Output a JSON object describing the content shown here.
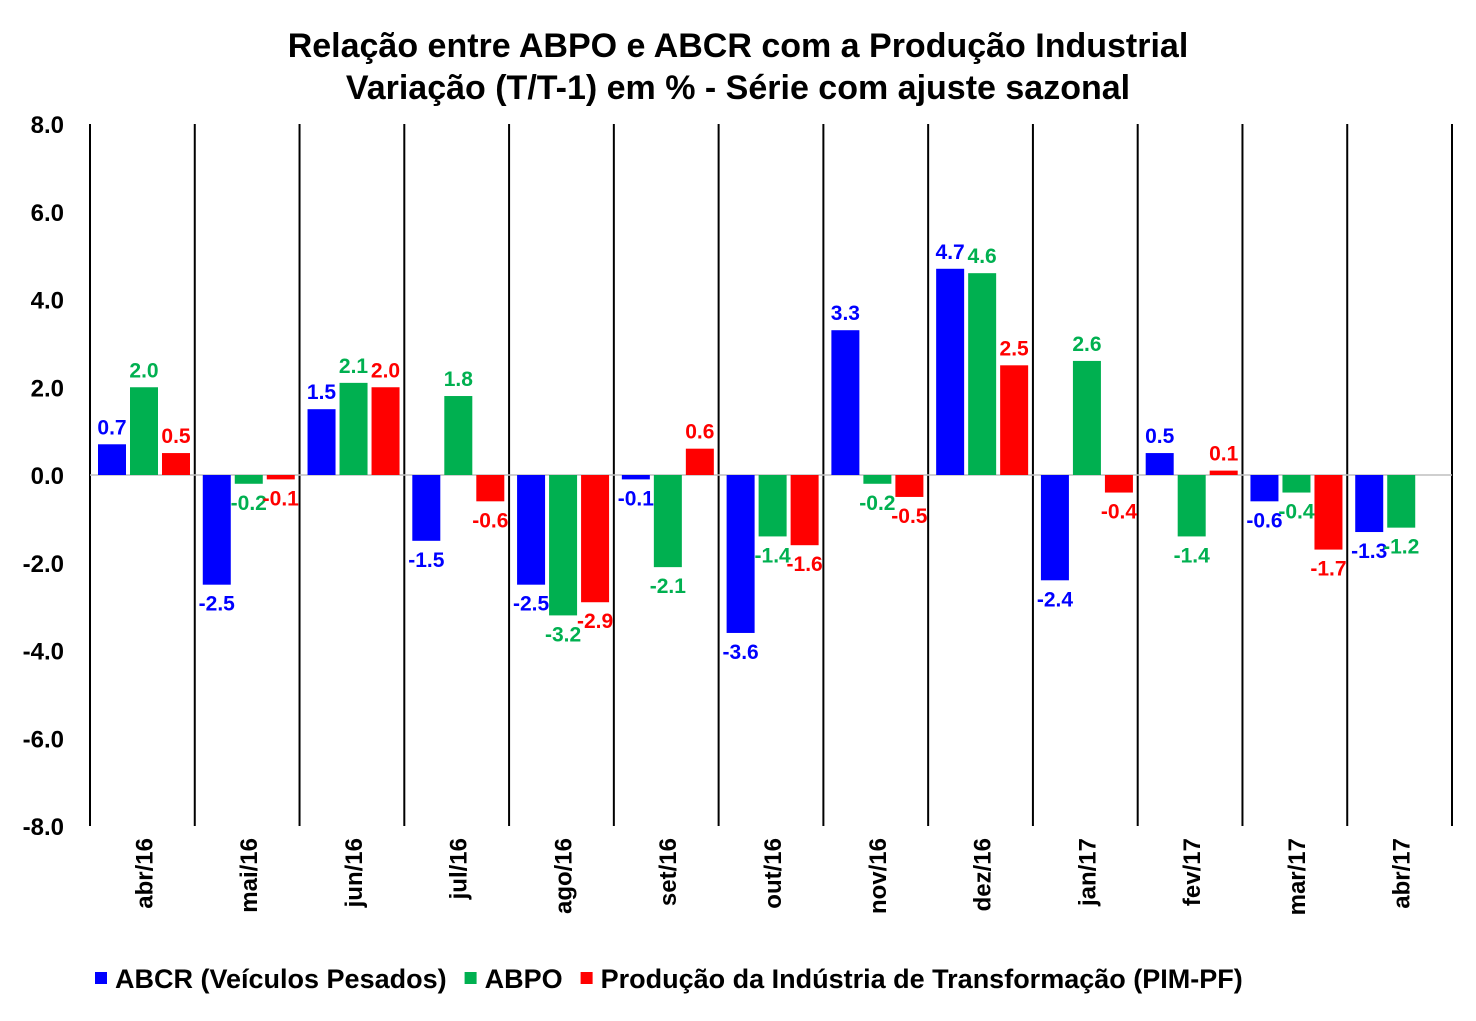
{
  "chart_data": {
    "type": "bar",
    "title": "Relação entre ABPO e ABCR com a Produção Industrial",
    "subtitle": "Variação (T/T-1) em % - Série com ajuste sazonal",
    "categories": [
      "abr/16",
      "mai/16",
      "jun/16",
      "jul/16",
      "ago/16",
      "set/16",
      "out/16",
      "nov/16",
      "dez/16",
      "jan/17",
      "fev/17",
      "mar/17",
      "abr/17"
    ],
    "series": [
      {
        "name": "ABCR (Veículos Pesados)",
        "color": "#0000FF",
        "values": [
          0.7,
          -2.5,
          1.5,
          -1.5,
          -2.5,
          -0.1,
          -3.6,
          3.3,
          4.7,
          -2.4,
          0.5,
          -0.6,
          -1.3
        ],
        "labels": [
          "0.7",
          "-2.5",
          "1.5",
          "-1.5",
          "-2.5",
          "-0.1",
          "-3.6",
          "3.3",
          "4.7",
          "-2.4",
          "0.5",
          "-0.6",
          "-1.3"
        ]
      },
      {
        "name": "ABPO",
        "color": "#00B050",
        "values": [
          2.0,
          -0.2,
          2.1,
          1.8,
          -3.2,
          -2.1,
          -1.4,
          -0.2,
          4.6,
          2.6,
          -1.4,
          -0.4,
          -1.2
        ],
        "labels": [
          "2.0",
          "-0.2",
          "2.1",
          "1.8",
          "-3.2",
          "-2.1",
          "-1.4",
          "-0.2",
          "4.6",
          "2.6",
          "-1.4",
          "-0.4",
          "-1.2"
        ]
      },
      {
        "name": "Produção da Indústria de Transformação (PIM-PF)",
        "color": "#FF0000",
        "values": [
          0.5,
          -0.1,
          2.0,
          -0.6,
          -2.9,
          0.6,
          -1.6,
          -0.5,
          2.5,
          -0.4,
          0.1,
          -1.7,
          null
        ],
        "labels": [
          "0.5",
          "-0.1",
          "2.0",
          "-0.6",
          "-2.9",
          "0.6",
          "-1.6",
          "-0.5",
          "2.5",
          "-0.4",
          "0.1",
          "-1.7",
          ""
        ]
      }
    ],
    "ylim": [
      -8,
      8
    ],
    "yticks": [
      8,
      6,
      4,
      2,
      0,
      -2,
      -4,
      -6,
      -8
    ],
    "ytick_labels": [
      "8.0",
      "6.0",
      "4.0",
      "2.0",
      "0.0",
      "-2.0",
      "-4.0",
      "-6.0",
      "-8.0"
    ],
    "grid": "vertical category separators",
    "legend": "bottom"
  }
}
